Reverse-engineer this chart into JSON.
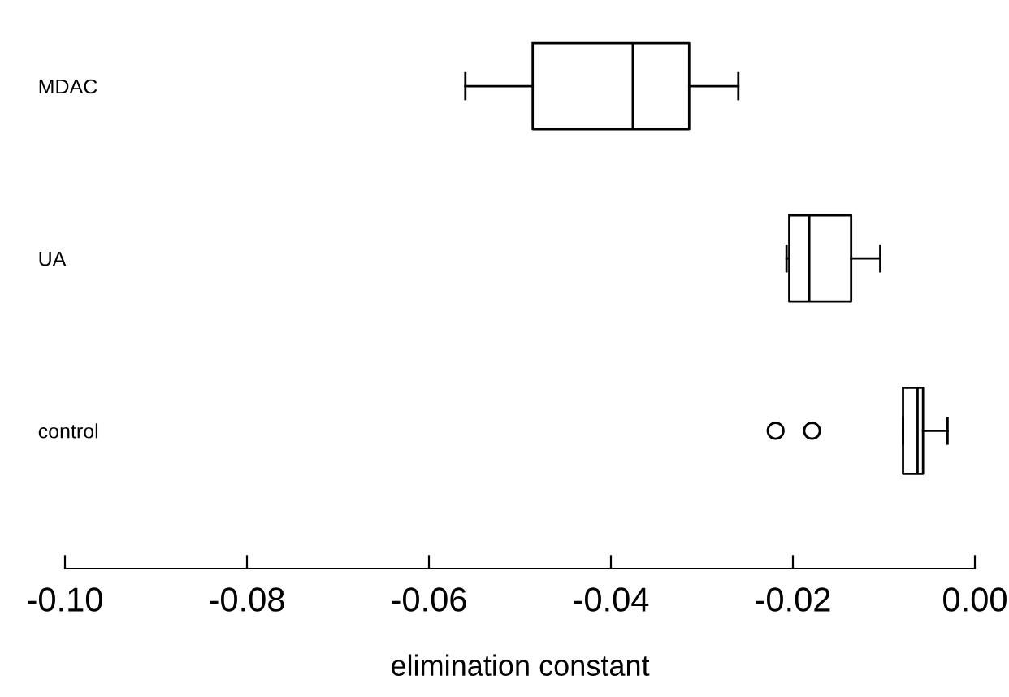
{
  "chart_data": {
    "type": "box",
    "orientation": "horizontal",
    "xlabel": "elimination constant",
    "categories": [
      "MDAC",
      "UA",
      "control"
    ],
    "boxes": [
      {
        "low": -0.056,
        "q1": -0.0486,
        "median": -0.0376,
        "q3": -0.0314,
        "high": -0.026
      },
      {
        "low": -0.0207,
        "q1": -0.0204,
        "median": -0.0182,
        "q3": -0.0136,
        "high": -0.0104
      },
      {
        "low": -0.0079,
        "q1": -0.0079,
        "median": -0.0063,
        "q3": -0.0057,
        "high": -0.003,
        "outliers": [
          -0.0219,
          -0.0179
        ]
      }
    ],
    "color": "#000000",
    "xlim": [
      -0.1,
      0.0
    ],
    "xticks": [
      {
        "value": -0.1,
        "label": "-0.10"
      },
      {
        "value": -0.08,
        "label": "-0.08"
      },
      {
        "value": -0.06,
        "label": "-0.06"
      },
      {
        "value": -0.04,
        "label": "-0.04"
      },
      {
        "value": -0.02,
        "label": "-0.02"
      },
      {
        "value": 0.0,
        "label": "0.00"
      }
    ],
    "grid": false,
    "marker": "circle"
  }
}
